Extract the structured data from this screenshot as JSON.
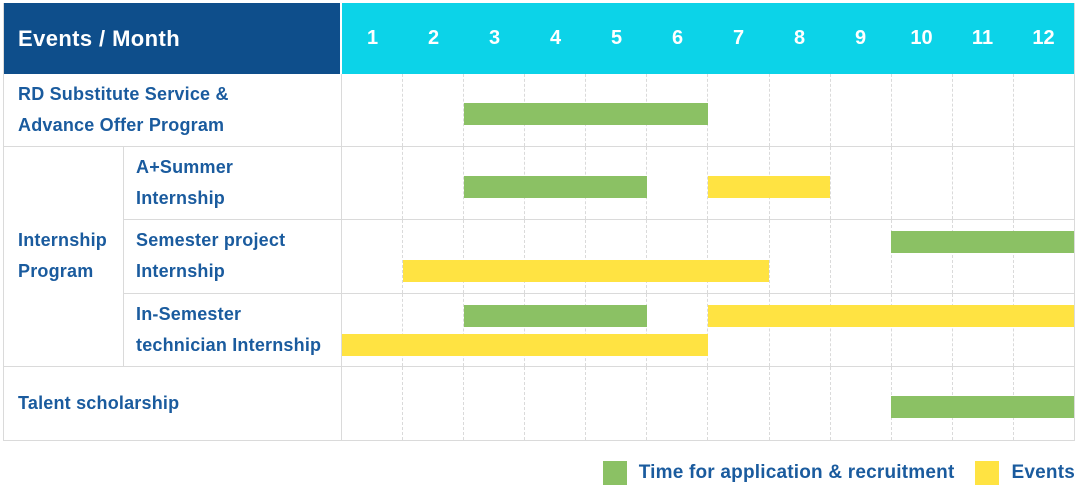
{
  "colors": {
    "header_bg": "#0e4e8b",
    "months_bg": "#0cd3e8",
    "bar_green": "#8bc164",
    "bar_yellow": "#ffe342",
    "label_text": "#1a5b9e",
    "grid_line": "#dadada"
  },
  "header": {
    "title": "Events / Month",
    "months": [
      "1",
      "2",
      "3",
      "4",
      "5",
      "6",
      "7",
      "8",
      "9",
      "10",
      "11",
      "12"
    ]
  },
  "rows": [
    {
      "name": "rd-substitute-service",
      "label_lines": [
        "RD Substitute Service &",
        "Advance Offer Program"
      ],
      "in_group": false,
      "bars": [
        {
          "color": "green",
          "start": 3,
          "end": 6,
          "line": "center"
        }
      ]
    },
    {
      "name": "a-plus-summer-internship",
      "label_lines": [
        "A+Summer",
        "Internship"
      ],
      "in_group": true,
      "group_start": true,
      "group_span": 3,
      "group_label_lines": [
        "Internship",
        "Program"
      ],
      "bars": [
        {
          "color": "green",
          "start": 3,
          "end": 5,
          "line": "center"
        },
        {
          "color": "yellow",
          "start": 7,
          "end": 8,
          "line": "center"
        }
      ]
    },
    {
      "name": "semester-project-internship",
      "label_lines": [
        "Semester project",
        "Internship"
      ],
      "in_group": true,
      "bars": [
        {
          "color": "green",
          "start": 10,
          "end": 12,
          "line": "top"
        },
        {
          "color": "yellow",
          "start": 2,
          "end": 7,
          "line": "bottom"
        }
      ]
    },
    {
      "name": "in-semester-technician-internship",
      "label_lines": [
        "In-Semester",
        "technician Internship"
      ],
      "in_group": true,
      "bars": [
        {
          "color": "green",
          "start": 3,
          "end": 5,
          "line": "top"
        },
        {
          "color": "yellow",
          "start": 7,
          "end": 12,
          "line": "top"
        },
        {
          "color": "yellow",
          "start": 1,
          "end": 6,
          "line": "bottom"
        }
      ]
    },
    {
      "name": "talent-scholarship",
      "label_lines": [
        "Talent scholarship"
      ],
      "in_group": false,
      "bars": [
        {
          "color": "green",
          "start": 10,
          "end": 12,
          "line": "center"
        }
      ]
    }
  ],
  "legend": {
    "items": [
      {
        "label": "Time for application & recruitment",
        "color_key": "green"
      },
      {
        "label": "Events",
        "color_key": "yellow"
      }
    ]
  },
  "chart_data": {
    "type": "bar",
    "subtype": "gantt",
    "title": "Events / Month",
    "x_categories": [
      1,
      2,
      3,
      4,
      5,
      6,
      7,
      8,
      9,
      10,
      11,
      12
    ],
    "xlabel": "Month",
    "legend_position": "bottom-right",
    "grid": true,
    "series": [
      {
        "name": "Time for application & recruitment",
        "color": "#8bc164"
      },
      {
        "name": "Events",
        "color": "#ffe342"
      }
    ],
    "rows": [
      {
        "group": "",
        "label": "RD Substitute Service & Advance Offer Program",
        "bars": [
          {
            "series": "Time for application & recruitment",
            "start_month": 3,
            "end_month": 6
          }
        ]
      },
      {
        "group": "Internship Program",
        "label": "A+Summer Internship",
        "bars": [
          {
            "series": "Time for application & recruitment",
            "start_month": 3,
            "end_month": 5
          },
          {
            "series": "Events",
            "start_month": 7,
            "end_month": 8
          }
        ]
      },
      {
        "group": "Internship Program",
        "label": "Semester project Internship",
        "bars": [
          {
            "series": "Time for application & recruitment",
            "start_month": 10,
            "end_month": 12
          },
          {
            "series": "Events",
            "start_month": 2,
            "end_month": 7
          }
        ]
      },
      {
        "group": "Internship Program",
        "label": "In-Semester technician Internship",
        "bars": [
          {
            "series": "Time for application & recruitment",
            "start_month": 3,
            "end_month": 5
          },
          {
            "series": "Events",
            "start_month": 7,
            "end_month": 12
          },
          {
            "series": "Events",
            "start_month": 1,
            "end_month": 6
          }
        ]
      },
      {
        "group": "",
        "label": "Talent scholarship",
        "bars": [
          {
            "series": "Time for application & recruitment",
            "start_month": 10,
            "end_month": 12
          }
        ]
      }
    ]
  }
}
